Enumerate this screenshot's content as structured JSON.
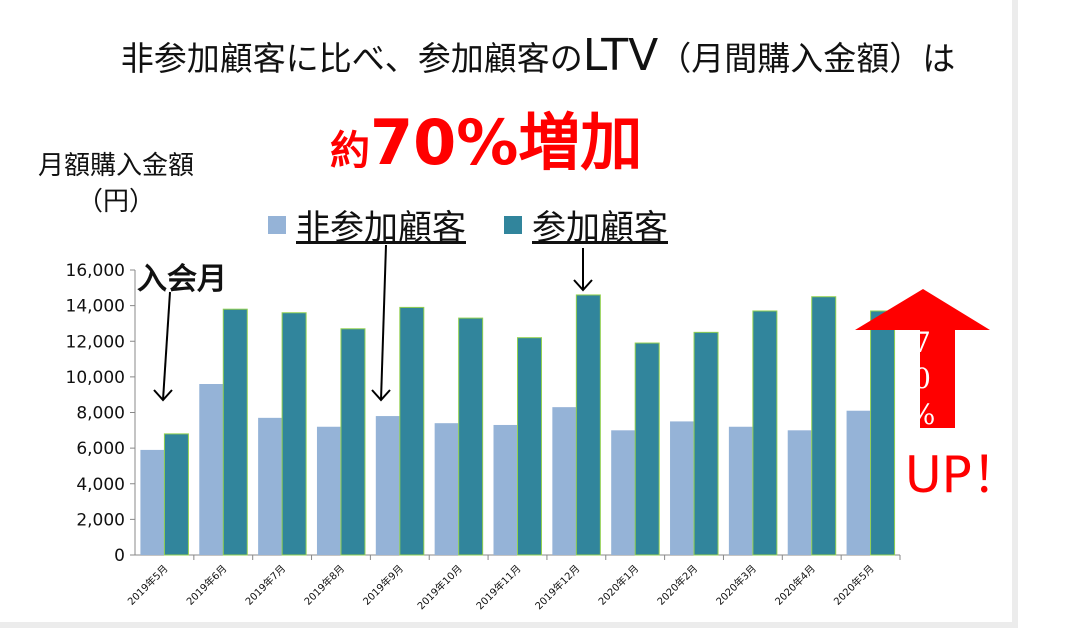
{
  "title": {
    "pre": "非参加顧客に比べ、参加顧客の",
    "ltv": "LTV",
    "post": "（月間購入金額）は"
  },
  "headline": {
    "prefix": "約",
    "main": "70%増加"
  },
  "annotations": {
    "join_month": "入会月",
    "up_percent_chars": [
      "7",
      "0",
      "%"
    ],
    "up_text": "UP！"
  },
  "colors": {
    "non": "#95b3d7",
    "part": "#31859c",
    "arrow": "#ff0000"
  },
  "chart_data": {
    "type": "bar",
    "ylabel_lines": [
      "月額購入金額",
      "（円）"
    ],
    "ylim": [
      0,
      16000
    ],
    "yticks": [
      "0",
      "2,000",
      "4,000",
      "6,000",
      "8,000",
      "10,000",
      "12,000",
      "14,000",
      "16,000"
    ],
    "ytick_values": [
      0,
      2000,
      4000,
      6000,
      8000,
      10000,
      12000,
      14000,
      16000
    ],
    "categories": [
      "2019年5月",
      "2019年6月",
      "2019年7月",
      "2019年8月",
      "2019年9月",
      "2019年10月",
      "2019年11月",
      "2019年12月",
      "2020年1月",
      "2020年2月",
      "2020年3月",
      "2020年4月",
      "2020年5月"
    ],
    "series": [
      {
        "name": "非参加顧客",
        "values": [
          5900,
          9600,
          7700,
          7200,
          7800,
          7400,
          7300,
          8300,
          7000,
          7500,
          7200,
          7000,
          8100
        ]
      },
      {
        "name": "参加顧客",
        "values": [
          6800,
          13800,
          13600,
          12700,
          13900,
          13300,
          12200,
          14600,
          11900,
          12500,
          13700,
          14500,
          13700
        ]
      }
    ],
    "legend": "top"
  }
}
